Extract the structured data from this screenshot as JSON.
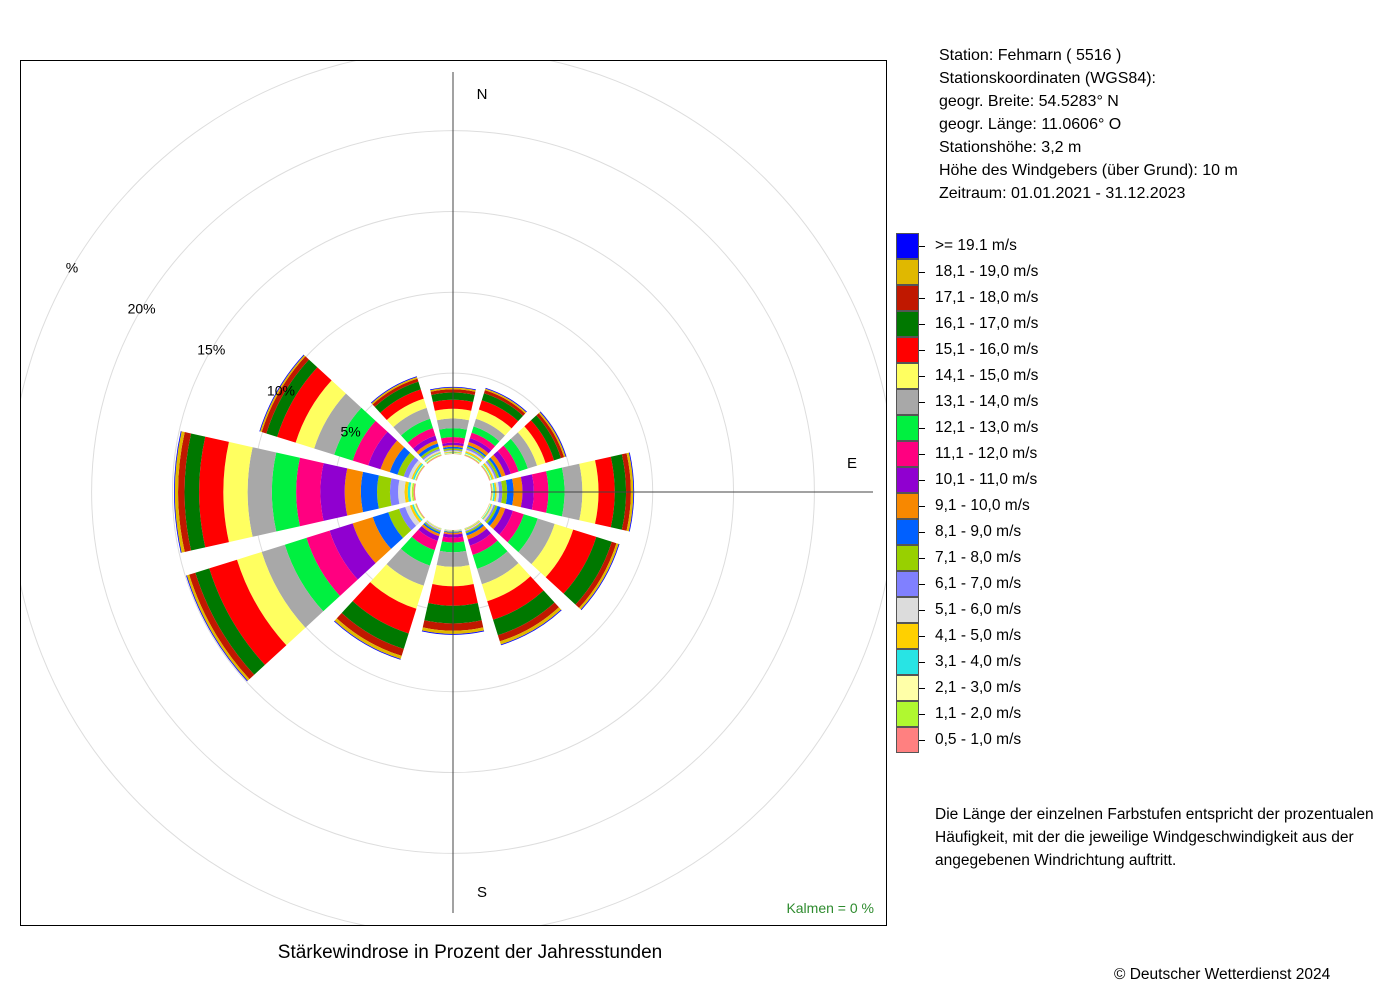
{
  "chart_data": {
    "type": "windrose",
    "title": "Stärkewindrose in Prozent der Jahresstunden",
    "direction_labels": {
      "N": "N",
      "E": "E",
      "S": "S"
    },
    "ring_values": [
      5,
      10,
      15,
      20,
      25
    ],
    "ring_labels": [
      "5%",
      "10%",
      "15%",
      "20%",
      "%"
    ],
    "calms_text": "Kalmen  =  0 %",
    "directions_deg": [
      0,
      30,
      60,
      90,
      120,
      150,
      180,
      210,
      240,
      270,
      300,
      330
    ],
    "class_labels": [
      ">= 19.1 m/s",
      "18,1 - 19,0 m/s",
      "17,1 - 18,0 m/s",
      "16,1 - 17,0 m/s",
      "15,1 - 16,0 m/s",
      "14,1 - 15,0 m/s",
      "13,1 - 14,0 m/s",
      "12,1 - 13,0 m/s",
      "11,1 - 12,0 m/s",
      "10,1 - 11,0 m/s",
      "9,1 - 10,0 m/s",
      "8,1 - 9,0 m/s",
      "7,1 - 8,0 m/s",
      "6,1 - 7,0 m/s",
      "5,1 - 6,0 m/s",
      "4,1 - 5,0 m/s",
      "3,1 - 4,0 m/s",
      "2,1 - 3,0 m/s",
      "1,1 - 2,0 m/s",
      "0,5 - 1,0 m/s"
    ],
    "class_colors": [
      "#0000ff",
      "#e0b800",
      "#c01800",
      "#007800",
      "#ff0000",
      "#ffff60",
      "#a8a8a8",
      "#00f040",
      "#ff0080",
      "#9000d0",
      "#f88800",
      "#0060ff",
      "#98d000",
      "#8080ff",
      "#dcdcdc",
      "#ffd000",
      "#28e4e4",
      "#ffffa8",
      "#b0f830",
      "#ff8080"
    ],
    "series": [
      {
        "direction_deg": 0,
        "values": [
          0.05,
          0.1,
          0.2,
          0.45,
          0.55,
          0.6,
          0.6,
          0.55,
          0.35,
          0.15,
          0.1,
          0.1,
          0.1,
          0.05,
          0.05,
          0.05,
          0.03,
          0.03,
          0.02,
          0.02
        ]
      },
      {
        "direction_deg": 30,
        "values": [
          0.05,
          0.1,
          0.2,
          0.45,
          0.6,
          0.6,
          0.5,
          0.4,
          0.35,
          0.25,
          0.2,
          0.1,
          0.1,
          0.1,
          0.1,
          0.1,
          0.05,
          0.05,
          0.05,
          0.05
        ]
      },
      {
        "direction_deg": 60,
        "values": [
          0.05,
          0.1,
          0.2,
          0.45,
          0.55,
          0.55,
          0.6,
          0.6,
          0.5,
          0.35,
          0.25,
          0.15,
          0.15,
          0.1,
          0.1,
          0.1,
          0.05,
          0.05,
          0.05,
          0.05
        ]
      },
      {
        "direction_deg": 90,
        "values": [
          0.05,
          0.15,
          0.3,
          0.7,
          1.0,
          1.0,
          1.1,
          1.0,
          0.9,
          0.7,
          0.55,
          0.4,
          0.3,
          0.2,
          0.15,
          0.1,
          0.1,
          0.05,
          0.05,
          0.05
        ]
      },
      {
        "direction_deg": 120,
        "values": [
          0.05,
          0.15,
          0.3,
          1.0,
          1.5,
          1.2,
          1.1,
          0.9,
          0.7,
          0.5,
          0.3,
          0.2,
          0.15,
          0.1,
          0.1,
          0.05,
          0.05,
          0.05,
          0.02,
          0.02
        ]
      },
      {
        "direction_deg": 150,
        "values": [
          0.05,
          0.2,
          0.4,
          1.0,
          1.2,
          1.1,
          1.0,
          0.9,
          0.6,
          0.4,
          0.25,
          0.15,
          0.1,
          0.05,
          0.05,
          0.05,
          0.02,
          0.02,
          0.02,
          0.02
        ]
      },
      {
        "direction_deg": 180,
        "values": [
          0.05,
          0.2,
          0.45,
          1.1,
          1.2,
          1.2,
          0.9,
          0.6,
          0.3,
          0.2,
          0.1,
          0.05,
          0.03,
          0.02,
          0.02,
          0.02,
          0.01,
          0.01,
          0.01,
          0.01
        ]
      },
      {
        "direction_deg": 210,
        "values": [
          0.05,
          0.2,
          0.45,
          1.0,
          1.6,
          1.5,
          1.3,
          1.0,
          0.6,
          0.3,
          0.15,
          0.1,
          0.08,
          0.05,
          0.05,
          0.03,
          0.02,
          0.02,
          0.01,
          0.01
        ]
      },
      {
        "direction_deg": 240,
        "values": [
          0.05,
          0.15,
          0.4,
          0.9,
          1.8,
          1.6,
          1.5,
          1.4,
          1.5,
          1.5,
          1.3,
          1.0,
          0.7,
          0.4,
          0.3,
          0.15,
          0.1,
          0.1,
          0.05,
          0.05
        ]
      },
      {
        "direction_deg": 270,
        "values": [
          0.05,
          0.2,
          0.4,
          0.9,
          1.5,
          1.5,
          1.5,
          1.5,
          1.5,
          1.5,
          1.0,
          1.0,
          0.8,
          0.5,
          0.4,
          0.2,
          0.15,
          0.1,
          0.1,
          0.1
        ]
      },
      {
        "direction_deg": 300,
        "values": [
          0.05,
          0.1,
          0.3,
          0.7,
          1.2,
          1.2,
          1.3,
          1.2,
          1.0,
          0.8,
          0.6,
          0.5,
          0.4,
          0.3,
          0.2,
          0.1,
          0.1,
          0.05,
          0.05,
          0.05
        ]
      },
      {
        "direction_deg": 330,
        "values": [
          0.05,
          0.1,
          0.2,
          0.5,
          0.6,
          0.6,
          0.7,
          0.6,
          0.5,
          0.3,
          0.2,
          0.2,
          0.15,
          0.1,
          0.1,
          0.05,
          0.05,
          0.05,
          0.05,
          0.05
        ]
      }
    ]
  },
  "station": {
    "name_line": "Station:  Fehmarn  ( 5516 )",
    "coords_title": "Stationskoordinaten (WGS84):",
    "lat_line": "geogr. Breite: 54.5283° N",
    "lon_line": "geogr. Länge: 11.0606° O",
    "height_line": "Stationshöhe: 3,2 m",
    "sensor_line": "Höhe des Windgebers (über Grund): 10 m",
    "period_line": "Zeitraum: 01.01.2021 - 31.12.2023"
  },
  "note": "Die Länge der einzelnen Farbstufen entspricht der prozentualen Häufigkeit, mit der die jeweilige Windgeschwindigkeit aus der angegebenen Windrichtung auftritt.",
  "copyright": "© Deutscher Wetterdienst  2024"
}
